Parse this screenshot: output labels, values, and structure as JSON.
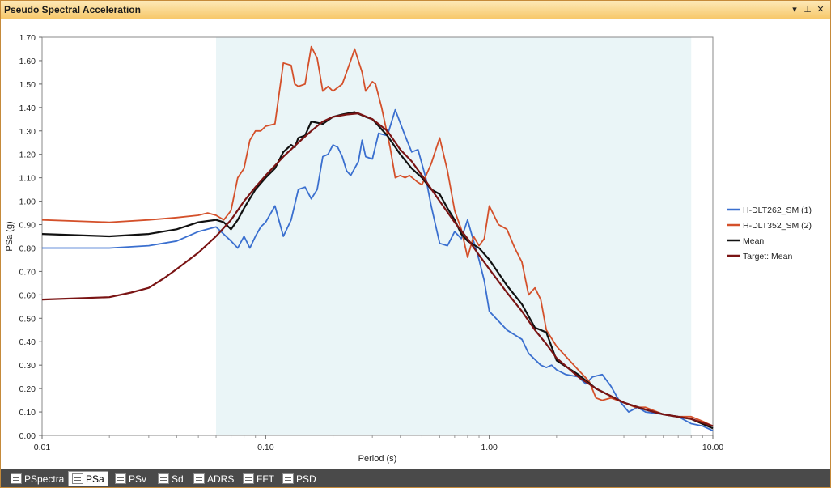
{
  "window": {
    "title": "Pseudo Spectral Acceleration",
    "controls": {
      "dropdown": "▾",
      "pin": "⊥",
      "close": "✕"
    }
  },
  "tabs": [
    {
      "label": "PSpectra",
      "icon": "spectra-icon",
      "active": false
    },
    {
      "label": "PSa",
      "icon": "psa-icon",
      "active": true
    },
    {
      "label": "PSv",
      "icon": "psv-icon",
      "active": false
    },
    {
      "label": "Sd",
      "icon": "sd-icon",
      "active": false
    },
    {
      "label": "ADRS",
      "icon": "adrs-icon",
      "active": false
    },
    {
      "label": "FFT",
      "icon": "fft-icon",
      "active": false
    },
    {
      "label": "PSD",
      "icon": "psd-icon",
      "active": false
    }
  ],
  "chart_data": {
    "type": "line",
    "title": "",
    "xlabel": "Period (s)",
    "ylabel": "PSa (g)",
    "x_scale": "log",
    "xlim": [
      0.01,
      10
    ],
    "ylim": [
      0,
      1.7
    ],
    "x_ticks": [
      "0.01",
      "0.10",
      "1.00",
      "10.00"
    ],
    "y_ticks": [
      "0.00",
      "0.10",
      "0.20",
      "0.30",
      "0.40",
      "0.50",
      "0.60",
      "0.70",
      "0.80",
      "0.90",
      "1.00",
      "1.10",
      "1.20",
      "1.30",
      "1.40",
      "1.50",
      "1.60",
      "1.70"
    ],
    "grid": false,
    "legend_position": "right",
    "shaded_range": {
      "x": [
        0.06,
        8.0
      ],
      "color": "#eaf5f7"
    },
    "series": [
      {
        "name": "H-DLT262_SM (1)",
        "color": "#3a6fcf",
        "points": [
          [
            0.01,
            0.8
          ],
          [
            0.02,
            0.8
          ],
          [
            0.03,
            0.81
          ],
          [
            0.04,
            0.83
          ],
          [
            0.05,
            0.87
          ],
          [
            0.06,
            0.89
          ],
          [
            0.07,
            0.83
          ],
          [
            0.075,
            0.8
          ],
          [
            0.08,
            0.85
          ],
          [
            0.085,
            0.8
          ],
          [
            0.09,
            0.85
          ],
          [
            0.095,
            0.89
          ],
          [
            0.1,
            0.91
          ],
          [
            0.11,
            0.98
          ],
          [
            0.12,
            0.85
          ],
          [
            0.13,
            0.92
          ],
          [
            0.14,
            1.05
          ],
          [
            0.15,
            1.06
          ],
          [
            0.16,
            1.01
          ],
          [
            0.17,
            1.05
          ],
          [
            0.18,
            1.19
          ],
          [
            0.19,
            1.2
          ],
          [
            0.2,
            1.24
          ],
          [
            0.21,
            1.23
          ],
          [
            0.22,
            1.19
          ],
          [
            0.23,
            1.13
          ],
          [
            0.24,
            1.11
          ],
          [
            0.26,
            1.17
          ],
          [
            0.27,
            1.26
          ],
          [
            0.28,
            1.19
          ],
          [
            0.3,
            1.18
          ],
          [
            0.32,
            1.29
          ],
          [
            0.35,
            1.28
          ],
          [
            0.38,
            1.39
          ],
          [
            0.42,
            1.28
          ],
          [
            0.45,
            1.21
          ],
          [
            0.48,
            1.22
          ],
          [
            0.52,
            1.1
          ],
          [
            0.55,
            0.98
          ],
          [
            0.6,
            0.82
          ],
          [
            0.65,
            0.81
          ],
          [
            0.7,
            0.87
          ],
          [
            0.75,
            0.84
          ],
          [
            0.8,
            0.92
          ],
          [
            0.85,
            0.83
          ],
          [
            0.9,
            0.75
          ],
          [
            0.95,
            0.66
          ],
          [
            1.0,
            0.53
          ],
          [
            1.2,
            0.45
          ],
          [
            1.4,
            0.41
          ],
          [
            1.5,
            0.35
          ],
          [
            1.7,
            0.3
          ],
          [
            1.8,
            0.29
          ],
          [
            1.9,
            0.3
          ],
          [
            2.0,
            0.28
          ],
          [
            2.2,
            0.26
          ],
          [
            2.5,
            0.25
          ],
          [
            2.7,
            0.22
          ],
          [
            2.9,
            0.25
          ],
          [
            3.2,
            0.26
          ],
          [
            3.5,
            0.21
          ],
          [
            3.8,
            0.15
          ],
          [
            4.2,
            0.1
          ],
          [
            4.6,
            0.12
          ],
          [
            5.0,
            0.1
          ],
          [
            6.0,
            0.09
          ],
          [
            7.0,
            0.08
          ],
          [
            8.0,
            0.05
          ],
          [
            9.0,
            0.04
          ],
          [
            10.0,
            0.02
          ]
        ]
      },
      {
        "name": "H-DLT352_SM (2)",
        "color": "#d4502a",
        "points": [
          [
            0.01,
            0.92
          ],
          [
            0.02,
            0.91
          ],
          [
            0.03,
            0.92
          ],
          [
            0.04,
            0.93
          ],
          [
            0.05,
            0.94
          ],
          [
            0.055,
            0.95
          ],
          [
            0.06,
            0.94
          ],
          [
            0.065,
            0.92
          ],
          [
            0.07,
            0.96
          ],
          [
            0.075,
            1.1
          ],
          [
            0.08,
            1.14
          ],
          [
            0.085,
            1.26
          ],
          [
            0.09,
            1.3
          ],
          [
            0.095,
            1.3
          ],
          [
            0.1,
            1.32
          ],
          [
            0.11,
            1.33
          ],
          [
            0.12,
            1.59
          ],
          [
            0.13,
            1.58
          ],
          [
            0.135,
            1.5
          ],
          [
            0.14,
            1.49
          ],
          [
            0.15,
            1.5
          ],
          [
            0.16,
            1.66
          ],
          [
            0.17,
            1.61
          ],
          [
            0.18,
            1.47
          ],
          [
            0.19,
            1.49
          ],
          [
            0.2,
            1.47
          ],
          [
            0.22,
            1.5
          ],
          [
            0.24,
            1.6
          ],
          [
            0.25,
            1.65
          ],
          [
            0.27,
            1.55
          ],
          [
            0.28,
            1.47
          ],
          [
            0.3,
            1.51
          ],
          [
            0.31,
            1.5
          ],
          [
            0.33,
            1.4
          ],
          [
            0.36,
            1.23
          ],
          [
            0.38,
            1.1
          ],
          [
            0.4,
            1.11
          ],
          [
            0.42,
            1.1
          ],
          [
            0.44,
            1.11
          ],
          [
            0.48,
            1.08
          ],
          [
            0.5,
            1.07
          ],
          [
            0.55,
            1.16
          ],
          [
            0.6,
            1.27
          ],
          [
            0.65,
            1.13
          ],
          [
            0.7,
            0.96
          ],
          [
            0.75,
            0.88
          ],
          [
            0.8,
            0.76
          ],
          [
            0.85,
            0.85
          ],
          [
            0.9,
            0.81
          ],
          [
            0.95,
            0.84
          ],
          [
            1.0,
            0.98
          ],
          [
            1.1,
            0.9
          ],
          [
            1.2,
            0.88
          ],
          [
            1.3,
            0.8
          ],
          [
            1.4,
            0.74
          ],
          [
            1.5,
            0.6
          ],
          [
            1.6,
            0.63
          ],
          [
            1.7,
            0.58
          ],
          [
            1.8,
            0.45
          ],
          [
            2.0,
            0.38
          ],
          [
            2.5,
            0.28
          ],
          [
            2.8,
            0.23
          ],
          [
            3.0,
            0.16
          ],
          [
            3.2,
            0.15
          ],
          [
            3.5,
            0.16
          ],
          [
            4.0,
            0.14
          ],
          [
            4.5,
            0.12
          ],
          [
            5.0,
            0.12
          ],
          [
            6.0,
            0.09
          ],
          [
            7.0,
            0.08
          ],
          [
            8.0,
            0.08
          ],
          [
            9.0,
            0.06
          ],
          [
            10.0,
            0.04
          ]
        ]
      },
      {
        "name": "Mean",
        "color": "#111111",
        "points": [
          [
            0.01,
            0.86
          ],
          [
            0.02,
            0.85
          ],
          [
            0.03,
            0.86
          ],
          [
            0.04,
            0.88
          ],
          [
            0.05,
            0.91
          ],
          [
            0.06,
            0.92
          ],
          [
            0.065,
            0.91
          ],
          [
            0.07,
            0.88
          ],
          [
            0.075,
            0.92
          ],
          [
            0.08,
            0.97
          ],
          [
            0.09,
            1.05
          ],
          [
            0.1,
            1.1
          ],
          [
            0.11,
            1.14
          ],
          [
            0.12,
            1.21
          ],
          [
            0.13,
            1.24
          ],
          [
            0.135,
            1.23
          ],
          [
            0.14,
            1.27
          ],
          [
            0.15,
            1.28
          ],
          [
            0.16,
            1.34
          ],
          [
            0.18,
            1.33
          ],
          [
            0.2,
            1.36
          ],
          [
            0.22,
            1.37
          ],
          [
            0.25,
            1.38
          ],
          [
            0.28,
            1.36
          ],
          [
            0.3,
            1.35
          ],
          [
            0.35,
            1.28
          ],
          [
            0.4,
            1.2
          ],
          [
            0.45,
            1.14
          ],
          [
            0.5,
            1.1
          ],
          [
            0.55,
            1.05
          ],
          [
            0.6,
            1.03
          ],
          [
            0.65,
            0.97
          ],
          [
            0.7,
            0.92
          ],
          [
            0.75,
            0.86
          ],
          [
            0.8,
            0.83
          ],
          [
            0.9,
            0.8
          ],
          [
            1.0,
            0.75
          ],
          [
            1.2,
            0.64
          ],
          [
            1.4,
            0.56
          ],
          [
            1.6,
            0.46
          ],
          [
            1.8,
            0.44
          ],
          [
            2.0,
            0.32
          ],
          [
            2.5,
            0.26
          ],
          [
            3.0,
            0.2
          ],
          [
            4.0,
            0.14
          ],
          [
            5.0,
            0.11
          ],
          [
            6.0,
            0.09
          ],
          [
            8.0,
            0.07
          ],
          [
            10.0,
            0.03
          ]
        ]
      },
      {
        "name": "Target: Mean",
        "color": "#7a1414",
        "points": [
          [
            0.01,
            0.58
          ],
          [
            0.02,
            0.59
          ],
          [
            0.025,
            0.61
          ],
          [
            0.03,
            0.63
          ],
          [
            0.035,
            0.67
          ],
          [
            0.04,
            0.71
          ],
          [
            0.05,
            0.78
          ],
          [
            0.06,
            0.85
          ],
          [
            0.07,
            0.92
          ],
          [
            0.08,
            1.0
          ],
          [
            0.09,
            1.06
          ],
          [
            0.1,
            1.11
          ],
          [
            0.12,
            1.19
          ],
          [
            0.14,
            1.25
          ],
          [
            0.16,
            1.3
          ],
          [
            0.18,
            1.34
          ],
          [
            0.2,
            1.36
          ],
          [
            0.23,
            1.37
          ],
          [
            0.26,
            1.375
          ],
          [
            0.3,
            1.35
          ],
          [
            0.35,
            1.3
          ],
          [
            0.4,
            1.22
          ],
          [
            0.45,
            1.17
          ],
          [
            0.5,
            1.11
          ],
          [
            0.6,
            1.0
          ],
          [
            0.7,
            0.91
          ],
          [
            0.8,
            0.84
          ],
          [
            0.9,
            0.77
          ],
          [
            1.0,
            0.71
          ],
          [
            1.2,
            0.61
          ],
          [
            1.4,
            0.53
          ],
          [
            1.6,
            0.45
          ],
          [
            1.8,
            0.39
          ],
          [
            2.0,
            0.33
          ],
          [
            2.5,
            0.25
          ],
          [
            3.0,
            0.2
          ],
          [
            4.0,
            0.14
          ],
          [
            5.0,
            0.11
          ],
          [
            6.0,
            0.09
          ],
          [
            8.0,
            0.07
          ],
          [
            10.0,
            0.04
          ]
        ]
      }
    ]
  }
}
